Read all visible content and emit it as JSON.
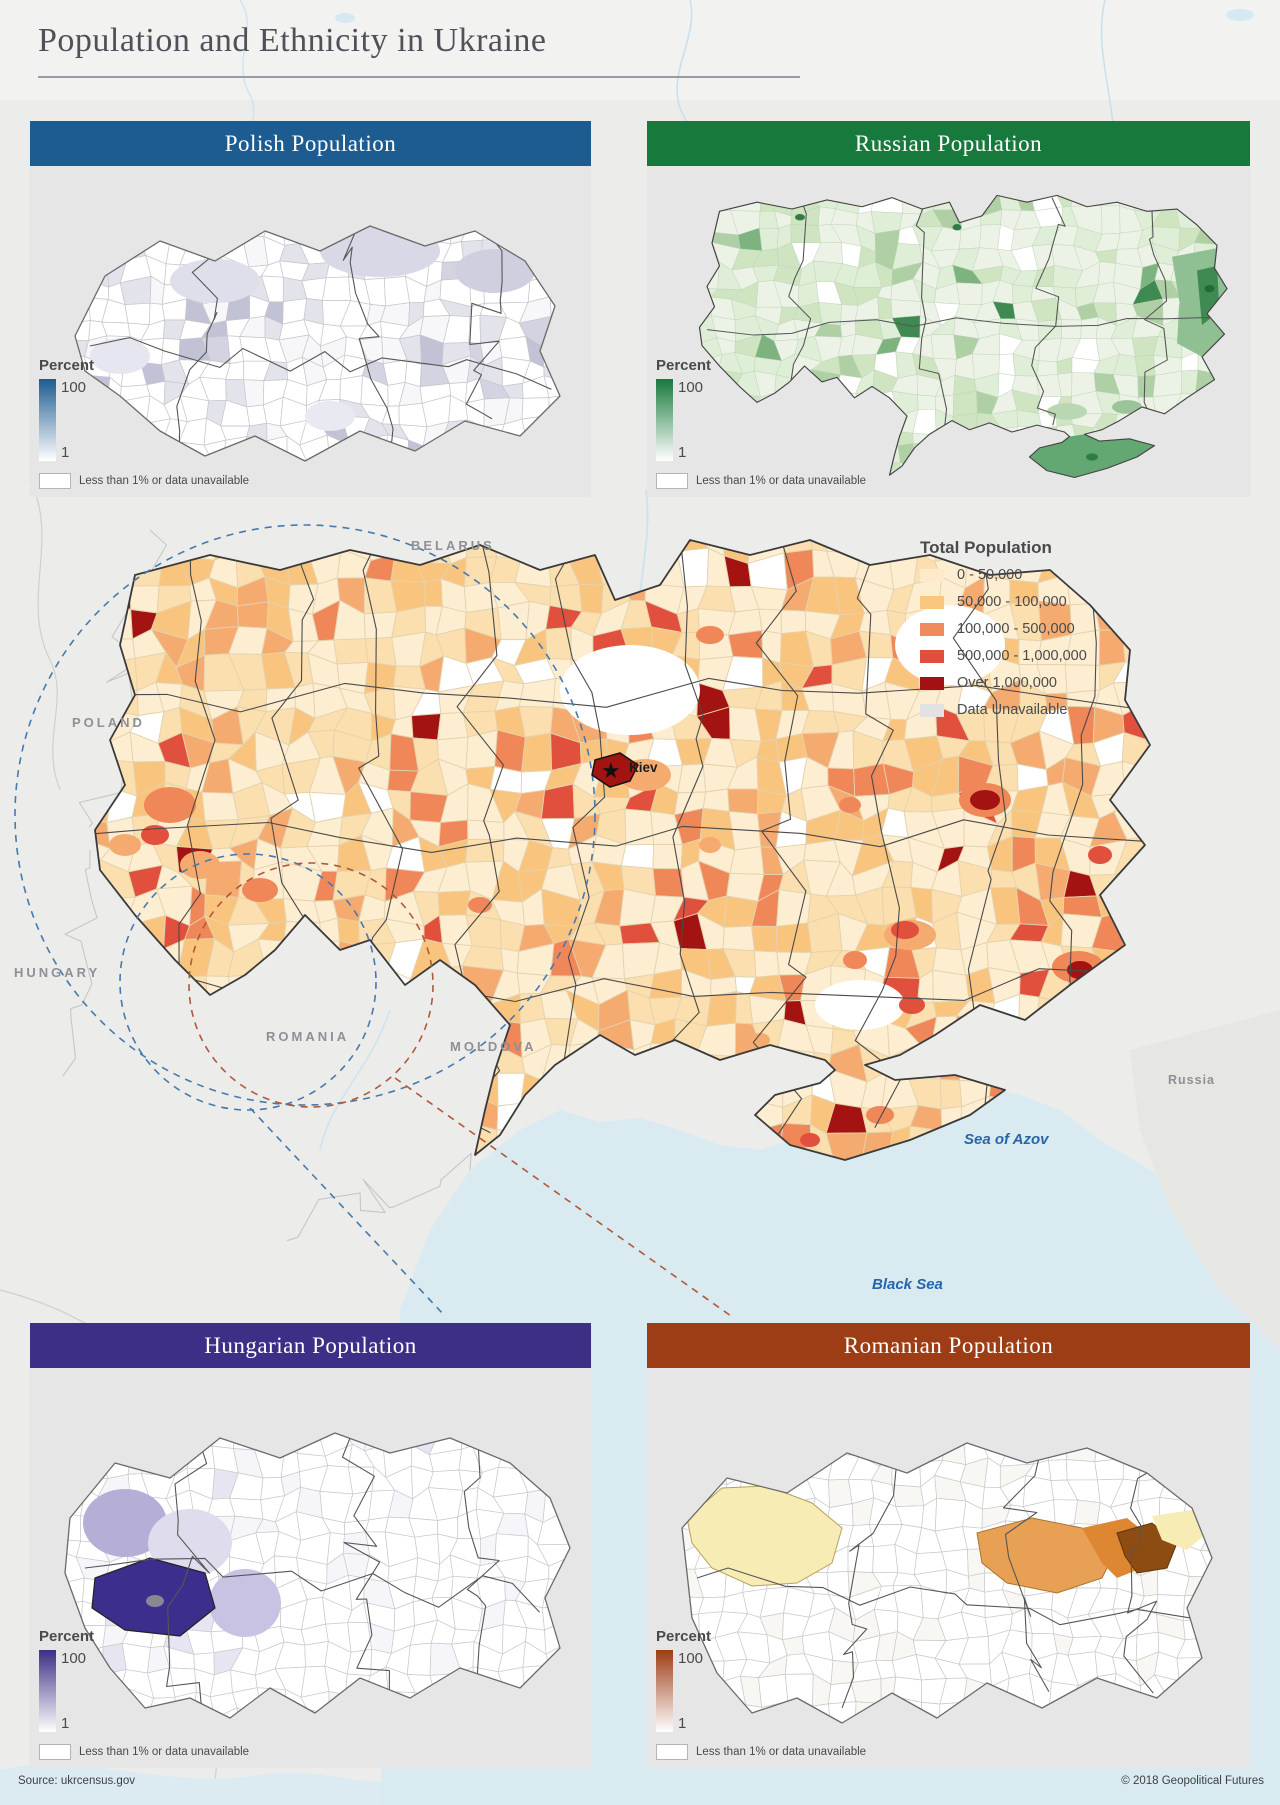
{
  "title": "Population and Ethnicity in Ukraine",
  "insets": {
    "polish": {
      "title": "Polish Population",
      "accent": "#1d5c90"
    },
    "russian": {
      "title": "Russian Population",
      "accent": "#17793c"
    },
    "hungarian": {
      "title": "Hungarian Population",
      "accent": "#3d2f86"
    },
    "romanian": {
      "title": "Romanian Population",
      "accent": "#9d3d15"
    }
  },
  "percent_legend": {
    "label": "Percent",
    "max": "100",
    "min": "1",
    "note": "Less than 1% or data unavailable"
  },
  "main_map": {
    "labels": {
      "belarus": "BELARUS",
      "poland": "POLAND",
      "hungary": "HUNGARY",
      "romania": "ROMANIA",
      "moldova": "MOLDOVA",
      "russia": "Russia",
      "sea_of_azov": "Sea of Azov",
      "black_sea": "Black Sea",
      "kiev": "Kiev"
    },
    "legend": {
      "title": "Total Population",
      "items": [
        {
          "label": "0 - 50,000",
          "color": "#fdeacb"
        },
        {
          "label": "50,000 - 100,000",
          "color": "#f9c67e"
        },
        {
          "label": "100,000 - 500,000",
          "color": "#f08b5e"
        },
        {
          "label": "500,000 - 1,000,000",
          "color": "#e04f3b"
        },
        {
          "label": "Over 1,000,000",
          "color": "#a31113"
        },
        {
          "label": "Data Unavailable",
          "color": "#e2e2e2"
        }
      ]
    }
  },
  "footer": {
    "source": "Source: ukrcensus.gov",
    "copyright": "© 2018 Geopolitical Futures"
  }
}
